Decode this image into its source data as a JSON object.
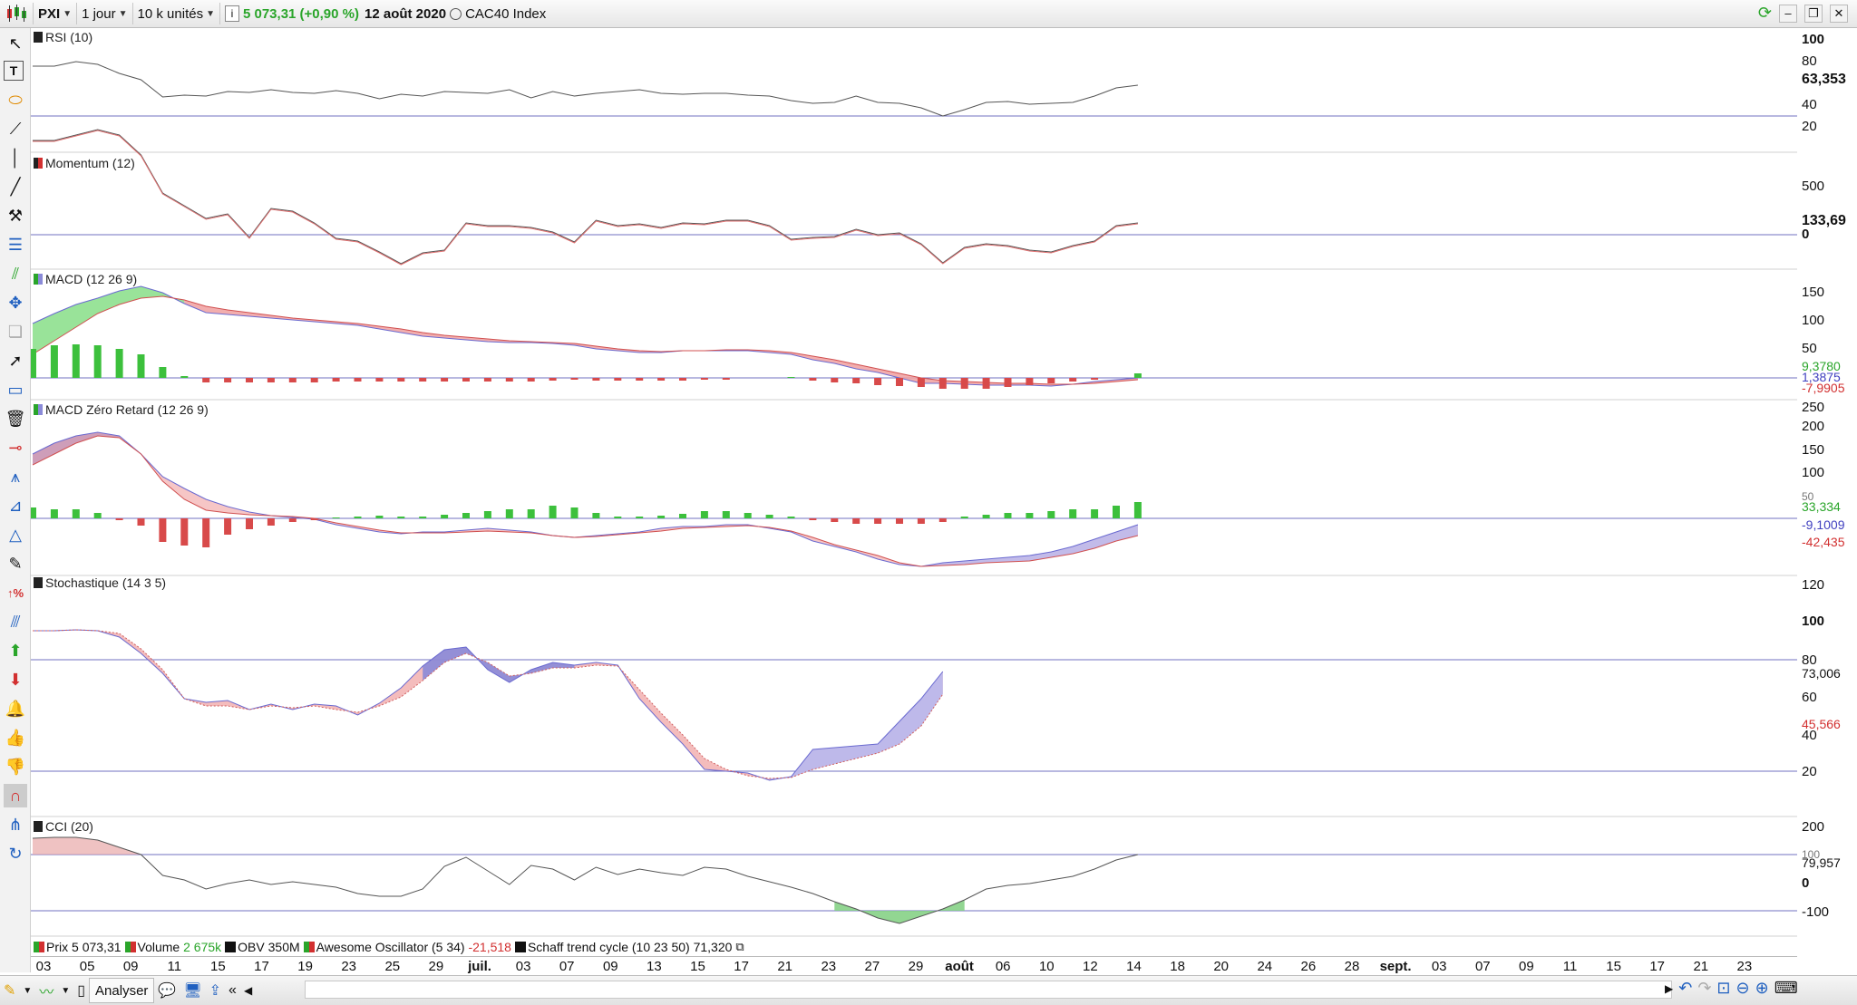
{
  "toolbar": {
    "symbol": "PXI",
    "period": "1 jour",
    "units": "10 k unités",
    "price": "5 073,31 (+0,90 %)",
    "date": "12 août 2020",
    "index_name": "CAC40 Index"
  },
  "panes": [
    {
      "title": "RSI (10)",
      "axis": [
        "100",
        "80",
        "40",
        "20"
      ],
      "value": "63,353"
    },
    {
      "title": "Momentum (12)",
      "axis": [
        "500",
        "0"
      ],
      "value": "133,69"
    },
    {
      "title": "MACD (12 26 9)",
      "axis": [
        "150",
        "100",
        "50"
      ],
      "values": [
        "9,3780",
        "1,3875",
        "-7,9905"
      ]
    },
    {
      "title": "MACD Zéro Retard (12 26 9)",
      "axis": [
        "250",
        "200",
        "150",
        "100",
        "50"
      ],
      "values": [
        "33,334",
        "-9,1009",
        "-42,435"
      ]
    },
    {
      "title": "Stochastique (14 3 5)",
      "axis": [
        "120",
        "100",
        "80",
        "60",
        "40",
        "20"
      ],
      "values": [
        "73,006",
        "45,566"
      ]
    },
    {
      "title": "CCI (20)",
      "axis": [
        "200",
        "100",
        "0",
        "-100"
      ],
      "value": "79,957"
    }
  ],
  "legend": [
    {
      "name": "Prix",
      "value": "5 073,31",
      "color": "#2aa52a"
    },
    {
      "name": "Volume",
      "value": "2 675k",
      "color": "#2aa52a"
    },
    {
      "name": "OBV",
      "value": "350M",
      "color": "#111111"
    },
    {
      "name": "Awesome Oscillator (5 34)",
      "value": "-21,518",
      "color": "#d23030"
    },
    {
      "name": "Schaff trend cycle (10 23 50)",
      "value": "71,320",
      "color": "#111111"
    }
  ],
  "x_labels": [
    "03",
    "05",
    "09",
    "11",
    "15",
    "17",
    "19",
    "23",
    "25",
    "29",
    "juil.",
    "03",
    "07",
    "09",
    "13",
    "15",
    "17",
    "21",
    "23",
    "27",
    "29",
    "août",
    "06",
    "10",
    "12",
    "14",
    "18",
    "20",
    "24",
    "26",
    "28",
    "sept.",
    "03",
    "07",
    "09",
    "11",
    "15",
    "17",
    "21",
    "23"
  ],
  "bottom": {
    "analyze_label": "Analyser"
  },
  "colors": {
    "up": "#2aa52a",
    "down": "#d23030",
    "bull_fill": "#8a8ad8",
    "bear_fill": "#f0a0a0",
    "macd_pos_fill": "#7fdc7f",
    "ref_line": "#7070c0"
  }
}
